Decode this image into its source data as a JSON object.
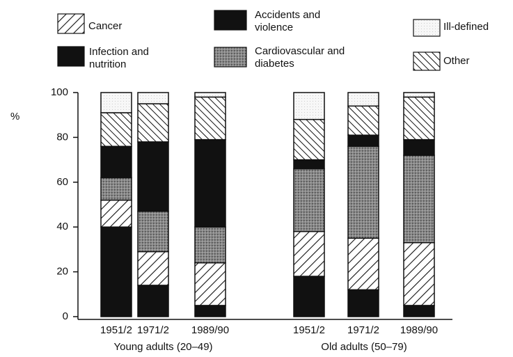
{
  "chart_data": {
    "type": "stacked_bar",
    "y_label": "%",
    "groups": [
      "Young adults (20–49)",
      "Old adults (50–79)"
    ],
    "categories": [
      "1951/2",
      "1971/2",
      "1989/90",
      "1951/2",
      "1971/2",
      "1989/90"
    ],
    "ylim": [
      0,
      100
    ],
    "yticks": [
      0,
      20,
      40,
      60,
      80,
      100
    ],
    "series": [
      {
        "name": "Infection and nutrition",
        "color": "#111111",
        "pattern": "solid",
        "values": [
          40,
          14,
          5,
          18,
          12,
          5
        ]
      },
      {
        "name": "Cancer",
        "color": "#111111",
        "pattern": "hatch-forward",
        "values": [
          12,
          15,
          19,
          20,
          23,
          28
        ]
      },
      {
        "name": "Cardiovascular and diabetes",
        "color": "#8a8a8a",
        "pattern": "stipple",
        "values": [
          10,
          18,
          16,
          28,
          41,
          39
        ]
      },
      {
        "name": "Accidents and violence",
        "color": "#111111",
        "pattern": "solid",
        "values": [
          14,
          31,
          39,
          4,
          5,
          7
        ]
      },
      {
        "name": "Other",
        "color": "#111111",
        "pattern": "hatch-back",
        "values": [
          15,
          17,
          19,
          18,
          13,
          19
        ]
      },
      {
        "name": "Ill-defined",
        "color": "#e8e8e8",
        "pattern": "dots",
        "values": [
          9,
          5,
          2,
          12,
          6,
          2
        ]
      }
    ]
  }
}
